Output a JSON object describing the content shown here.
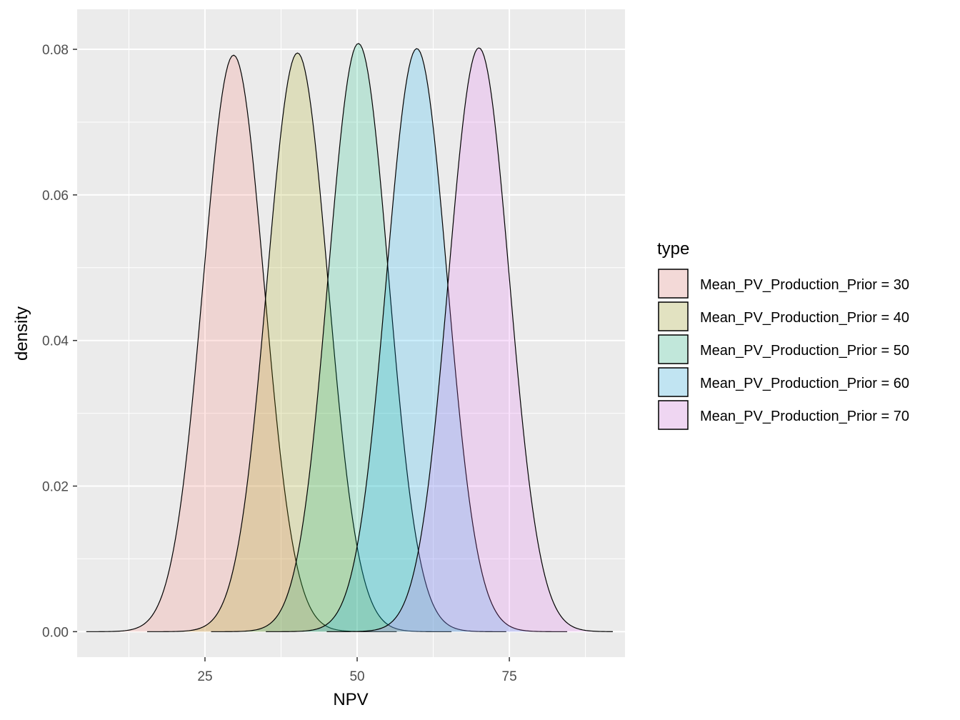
{
  "chart_data": {
    "type": "area",
    "subtype": "density",
    "title": "",
    "xlabel": "NPV",
    "ylabel": "density",
    "xlim": [
      4,
      94
    ],
    "ylim": [
      -0.0035,
      0.0855
    ],
    "x_ticks": [
      25,
      50,
      75
    ],
    "x_tick_labels": [
      "25",
      "50",
      "75"
    ],
    "y_ticks": [
      0.0,
      0.02,
      0.04,
      0.06,
      0.08
    ],
    "y_tick_labels": [
      "0.00",
      "0.02",
      "0.04",
      "0.06",
      "0.08"
    ],
    "grid": true,
    "fill_opacity": 0.2,
    "legend": {
      "title": "type",
      "position": "right"
    },
    "series": [
      {
        "name": "Mean_PV_Production_Prior = 30",
        "color": "#F8766D",
        "mean": 29.7,
        "sd": 5.0,
        "peak": 0.0792,
        "x_range": [
          5.5,
          56.5
        ]
      },
      {
        "name": "Mean_PV_Production_Prior = 40",
        "color": "#A3A500",
        "mean": 40.2,
        "sd": 5.0,
        "peak": 0.0795,
        "x_range": [
          15.5,
          65.5
        ]
      },
      {
        "name": "Mean_PV_Production_Prior = 50",
        "color": "#00BF7D",
        "mean": 50.2,
        "sd": 4.95,
        "peak": 0.0808,
        "x_range": [
          26.0,
          74.5
        ]
      },
      {
        "name": "Mean_PV_Production_Prior = 60",
        "color": "#00B0F6",
        "mean": 59.8,
        "sd": 5.0,
        "peak": 0.0801,
        "x_range": [
          35.0,
          84.5
        ]
      },
      {
        "name": "Mean_PV_Production_Prior = 70",
        "color": "#E76BF3",
        "mean": 70.0,
        "sd": 5.0,
        "peak": 0.0802,
        "x_range": [
          45.0,
          92.0
        ]
      }
    ]
  }
}
